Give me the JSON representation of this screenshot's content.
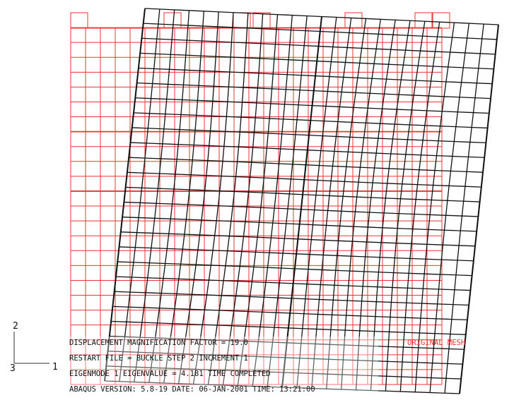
{
  "triad": {
    "axis_2": "2",
    "axis_3": "3",
    "axis_1": "1"
  },
  "legend": {
    "original_mesh": "ORIGINAL MESH"
  },
  "info": {
    "line_1": "DISPLACEMENT MAGNIFICATION FACTOR =   19.0",
    "line_2": "RESTART FILE = BUCKLE    STEP 2   INCREMENT 1",
    "line_3": "EIGENMODE 1     EIGENVALUE =   4.181     TIME COMPLETED",
    "line_4": "ABAQUS VERSION: 5.8-19   DATE: 06-JAN-2001   TIME: 13:21:00"
  }
}
